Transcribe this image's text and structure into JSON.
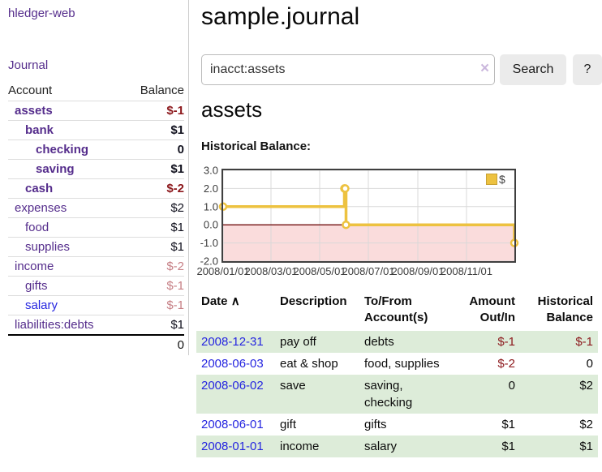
{
  "sidebar": {
    "app_title": "hledger-web",
    "journal_link": "Journal",
    "accounts_table": {
      "headers": {
        "account": "Account",
        "balance": "Balance"
      },
      "rows": [
        {
          "name": "assets",
          "balance": "$-1"
        },
        {
          "name": "bank",
          "balance": "$1"
        },
        {
          "name": "checking",
          "balance": "0"
        },
        {
          "name": "saving",
          "balance": "$1"
        },
        {
          "name": "cash",
          "balance": "$-2"
        },
        {
          "name": "expenses",
          "balance": "$2"
        },
        {
          "name": "food",
          "balance": "$1"
        },
        {
          "name": "supplies",
          "balance": "$1"
        },
        {
          "name": "income",
          "balance": "$-2"
        },
        {
          "name": "gifts",
          "balance": "$-1"
        },
        {
          "name": "salary",
          "balance": "$-1"
        },
        {
          "name": "liabilities:debts",
          "balance": "$1"
        }
      ],
      "total": "0"
    }
  },
  "main": {
    "title": "sample.journal",
    "search": {
      "value": "inacct:assets",
      "clear_icon": "×",
      "search_button": "Search",
      "help_button": "?"
    },
    "account_heading": "assets",
    "chart_title": "Historical Balance:"
  },
  "chart_data": {
    "type": "line",
    "title": "Historical Balance",
    "xlim": [
      "2008-01-01",
      "2008-12-31"
    ],
    "ylim": [
      -2.0,
      3.0
    ],
    "yticks": [
      3.0,
      2.0,
      1.0,
      0.0,
      -1.0,
      -2.0
    ],
    "ytick_labels": [
      "3.0",
      "2.0",
      "1.0",
      "0.0",
      "-1.0",
      "-2.0"
    ],
    "xticks": [
      {
        "date": "2008-01-01",
        "label": "2008/01/01"
      },
      {
        "date": "2008-03-01",
        "label": "2008/03/01"
      },
      {
        "date": "2008-05-01",
        "label": "2008/05/01"
      },
      {
        "date": "2008-07-01",
        "label": "2008/07/01"
      },
      {
        "date": "2008-09-01",
        "label": "2008/09/01"
      },
      {
        "date": "2008-11-01",
        "label": "2008/11/01"
      }
    ],
    "series": [
      {
        "name": "$",
        "color": "#edc240",
        "step": true,
        "points": [
          [
            "2008-01-01",
            1
          ],
          [
            "2008-06-01",
            2
          ],
          [
            "2008-06-02",
            2
          ],
          [
            "2008-06-03",
            0
          ],
          [
            "2008-12-31",
            -1
          ]
        ]
      }
    ],
    "legend": {
      "label": "$",
      "position": "top-right"
    },
    "grid": true,
    "grid_color": "#d9d9d9",
    "zero_line_color": "#7d2222",
    "negative_region_color": "#fadcdc",
    "border_color": "#3f3f3f"
  },
  "transactions": {
    "headers": {
      "date": "Date",
      "date_sort_arrow": "∧",
      "description": "Description",
      "tofrom": "To/From Account(s)",
      "amount": "Amount Out/In",
      "historical": "Historical Balance"
    },
    "rows": [
      {
        "date": "2008-12-31",
        "description": "pay off",
        "tofrom": "debts",
        "amount": "$-1",
        "historical": "$-1"
      },
      {
        "date": "2008-06-03",
        "description": "eat & shop",
        "tofrom": "food, supplies",
        "amount": "$-2",
        "historical": "0"
      },
      {
        "date": "2008-06-02",
        "description": "save",
        "tofrom": "saving, checking",
        "amount": "0",
        "historical": "$2"
      },
      {
        "date": "2008-06-01",
        "description": "gift",
        "tofrom": "gifts",
        "amount": "$1",
        "historical": "$2"
      },
      {
        "date": "2008-01-01",
        "description": "income",
        "tofrom": "salary",
        "amount": "$1",
        "historical": "$1"
      }
    ]
  }
}
